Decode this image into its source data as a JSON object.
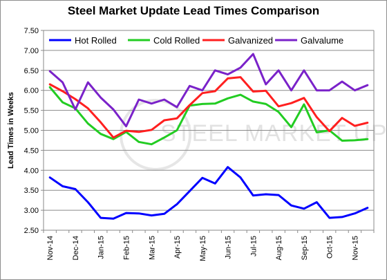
{
  "chart_data": {
    "type": "line",
    "title": "Steel Market Update Lead Times Comparison",
    "ylabel": "Lead Times in Weeks",
    "xlabel": "",
    "ylim": [
      2.5,
      7.5
    ],
    "y_ticks": [
      "2.50",
      "3.00",
      "3.50",
      "4.00",
      "4.50",
      "5.00",
      "5.50",
      "6.00",
      "6.50",
      "7.00",
      "7.50"
    ],
    "x_tick_labels": [
      "Nov-14",
      "Dec-14",
      "Jan-15",
      "Feb-15",
      "Mar-15",
      "Apr-15",
      "May-15",
      "Jun-15",
      "Jul-15",
      "Aug-15",
      "Sep-15",
      "Oct-15",
      "Nov-15"
    ],
    "points_per_month": 2,
    "grid": "horizontal",
    "legend_position": "top",
    "watermark": "STEEL MARKET UPDATE",
    "series": [
      {
        "name": "Hot Rolled",
        "color": "#0000ff",
        "values": [
          3.82,
          3.6,
          3.53,
          3.2,
          2.81,
          2.79,
          2.93,
          2.92,
          2.87,
          2.91,
          3.15,
          3.48,
          3.81,
          3.67,
          4.08,
          3.82,
          3.37,
          3.4,
          3.38,
          3.12,
          3.04,
          3.2,
          2.81,
          2.83,
          2.92,
          3.06
        ]
      },
      {
        "name": "Cold Rolled",
        "color": "#22cc22",
        "values": [
          6.08,
          5.7,
          5.55,
          5.17,
          4.91,
          4.78,
          4.96,
          4.71,
          4.65,
          4.82,
          5.0,
          5.62,
          5.66,
          5.67,
          5.8,
          5.89,
          5.72,
          5.66,
          5.46,
          5.08,
          5.65,
          4.95,
          5.0,
          4.74,
          4.75,
          4.78
        ]
      },
      {
        "name": "Galvanized",
        "color": "#ff1f1f",
        "values": [
          6.15,
          5.98,
          5.78,
          5.55,
          5.2,
          4.82,
          4.99,
          4.96,
          5.01,
          5.25,
          5.3,
          5.63,
          5.93,
          5.98,
          6.3,
          6.33,
          5.97,
          5.99,
          5.6,
          5.68,
          5.81,
          5.33,
          4.98,
          5.31,
          5.11,
          5.19
        ]
      },
      {
        "name": "Galvalume",
        "color": "#7a22c9",
        "values": [
          6.48,
          6.2,
          5.52,
          6.2,
          5.82,
          5.52,
          5.1,
          5.77,
          5.67,
          5.77,
          5.58,
          6.11,
          6.0,
          6.5,
          6.4,
          6.57,
          6.91,
          6.15,
          6.5,
          6.0,
          6.5,
          6.0,
          6.0,
          6.22,
          6.0,
          6.13
        ]
      }
    ]
  }
}
